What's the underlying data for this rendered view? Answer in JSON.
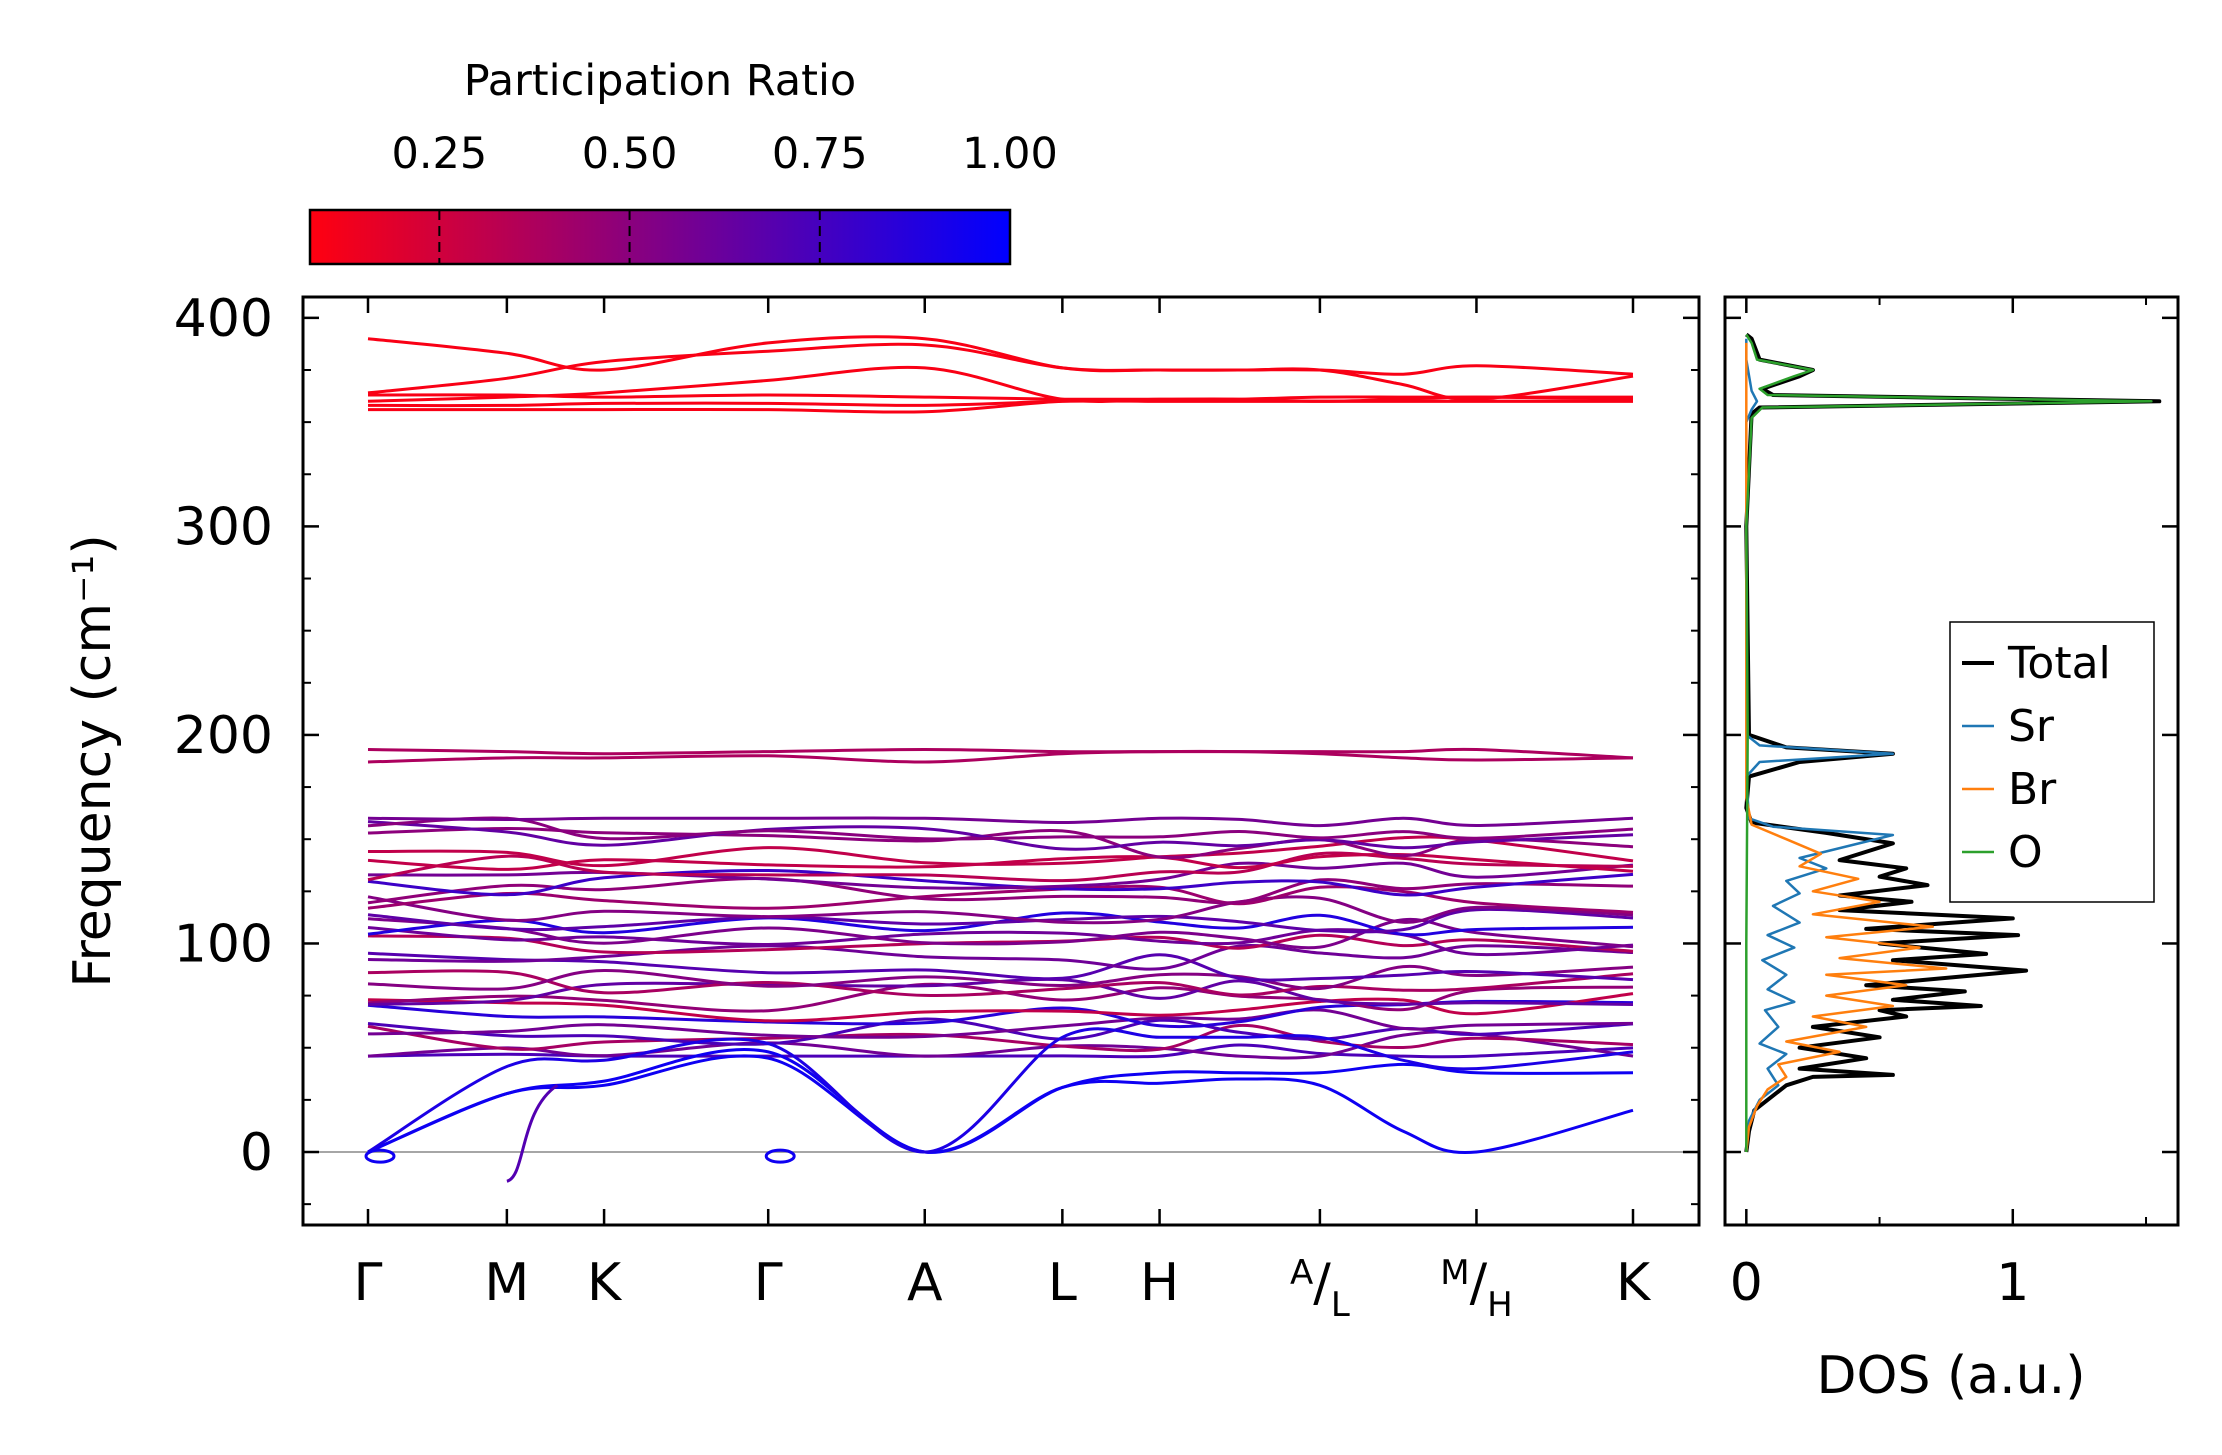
{
  "colorbar": {
    "title": "Participation Ratio",
    "range": [
      0.08,
      1.0
    ],
    "ticks": [
      0.25,
      0.5,
      0.75,
      1.0
    ],
    "tick_labels": [
      "0.25",
      "0.50",
      "0.75",
      "1.00"
    ],
    "color_low": "#ff0010",
    "color_high": "#0000ff"
  },
  "chart_data": [
    {
      "type": "line",
      "title": "",
      "xlabel": "",
      "ylabel": "Frequency (cm⁻¹)",
      "ylim": [
        -35,
        410
      ],
      "y_ticks": [
        0,
        100,
        200,
        300,
        400
      ],
      "y_tick_labels": [
        "0",
        "100",
        "200",
        "300",
        "400"
      ],
      "xlim": [
        0,
        10.4
      ],
      "kpoints": [
        {
          "pos": 0.0,
          "label": "Γ"
        },
        {
          "pos": 1.1,
          "label": "M"
        },
        {
          "pos": 1.87,
          "label": "K"
        },
        {
          "pos": 3.17,
          "label": "Γ"
        },
        {
          "pos": 4.41,
          "label": "A"
        },
        {
          "pos": 5.5,
          "label": "L"
        },
        {
          "pos": 6.27,
          "label": "H"
        },
        {
          "pos": 7.54,
          "label": "A",
          "sub": "L"
        },
        {
          "pos": 8.78,
          "label": "M",
          "sub": "H"
        },
        {
          "pos": 10.02,
          "label": "K"
        }
      ],
      "segments": [
        [
          0.0,
          1.1
        ],
        [
          1.1,
          3.17
        ],
        [
          3.17,
          7.54
        ],
        [
          7.54,
          8.78
        ],
        [
          8.78,
          10.02
        ]
      ],
      "bands": {
        "high": [
          {
            "y": [
              390,
              383,
              375,
              388,
              390,
              376,
              375,
              375,
              375,
              368,
              361,
              372
            ],
            "pr": 0.1
          },
          {
            "y": [
              364,
              371,
              379,
              384,
              387,
              376,
              375,
              375,
              375,
              373,
              377,
              373
            ],
            "pr": 0.1
          },
          {
            "y": [
              363,
              363,
              362,
              363,
              362,
              361,
              361,
              361,
              362,
              362,
              362,
              362
            ],
            "pr": 0.1
          },
          {
            "y": [
              360,
              362,
              364,
              370,
              376,
              361,
              361,
              361,
              360,
              361,
              362,
              361
            ],
            "pr": 0.1
          },
          {
            "y": [
              358,
              358,
              359,
              359,
              358,
              360,
              360,
              360,
              360,
              360,
              360,
              360
            ],
            "pr": 0.1
          },
          {
            "y": [
              356,
              356,
              356,
              356,
              355,
              360,
              360,
              360,
              360,
              360,
              360,
              360
            ],
            "pr": 0.1
          }
        ],
        "mid": [
          {
            "y": [
              193,
              192,
              191,
              192,
              193,
              192,
              192,
              192,
              192,
              192,
              193,
              189
            ],
            "pr": 0.38
          },
          {
            "y": [
              187,
              189,
              189,
              190,
              187,
              191,
              192,
              192,
              191,
              189,
              188,
              189
            ],
            "pr": 0.38
          }
        ],
        "optic": {
          "lines": 30,
          "y_min": 46,
          "y_max": 160
        },
        "acoustic": [
          {
            "y": [
              0,
              28,
              32,
              45,
              0,
              31,
              33,
              35,
              32,
              10,
              0,
              20
            ],
            "pr": 0.95
          },
          {
            "y": [
              0,
              28,
              34,
              48,
              0,
              31,
              38,
              38,
              38,
              42,
              38,
              38
            ],
            "pr": 0.95
          },
          {
            "y": [
              0,
              41,
              44,
              52,
              0,
              55,
              55,
              55,
              55,
              44,
              40,
              48
            ],
            "pr": 0.9
          }
        ]
      },
      "zero_line": true
    },
    {
      "type": "line",
      "title": "",
      "xlabel": "DOS (a.u.)",
      "ylabel": "",
      "xlim": [
        -0.08,
        1.62
      ],
      "ylim": [
        -35,
        410
      ],
      "x_ticks": [
        0,
        1
      ],
      "x_tick_labels": [
        "0",
        "1"
      ],
      "legend_position": "right",
      "series": [
        {
          "name": "Total",
          "color": "#000000",
          "points": [
            [
              0,
              0
            ],
            [
              0.01,
              10
            ],
            [
              0.03,
              20
            ],
            [
              0.1,
              27
            ],
            [
              0.15,
              32
            ],
            [
              0.25,
              36
            ],
            [
              0.55,
              37
            ],
            [
              0.2,
              40
            ],
            [
              0.45,
              45
            ],
            [
              0.2,
              50
            ],
            [
              0.5,
              55
            ],
            [
              0.25,
              60
            ],
            [
              0.6,
              65
            ],
            [
              0.5,
              68
            ],
            [
              0.88,
              70
            ],
            [
              0.55,
              73
            ],
            [
              0.82,
              77
            ],
            [
              0.45,
              80
            ],
            [
              1.05,
              87
            ],
            [
              0.55,
              92
            ],
            [
              0.9,
              95
            ],
            [
              0.5,
              100
            ],
            [
              1.02,
              104
            ],
            [
              0.45,
              107
            ],
            [
              1.0,
              112
            ],
            [
              0.35,
              116
            ],
            [
              0.62,
              120
            ],
            [
              0.35,
              123
            ],
            [
              0.68,
              128
            ],
            [
              0.5,
              132
            ],
            [
              0.6,
              136
            ],
            [
              0.35,
              140
            ],
            [
              0.55,
              148
            ],
            [
              0.3,
              153
            ],
            [
              0.02,
              158
            ],
            [
              0,
              165
            ],
            [
              0.01,
              180
            ],
            [
              0.2,
              187
            ],
            [
              0.55,
              191
            ],
            [
              0.15,
              194
            ],
            [
              0.01,
              200
            ],
            [
              0,
              300
            ],
            [
              0.02,
              354
            ],
            [
              0.05,
              357
            ],
            [
              1.55,
              360
            ],
            [
              0.1,
              363
            ],
            [
              0.06,
              366
            ],
            [
              0.2,
              372
            ],
            [
              0.25,
              375
            ],
            [
              0.05,
              380
            ],
            [
              0.02,
              390
            ],
            [
              0,
              392
            ]
          ]
        },
        {
          "name": "Sr",
          "color": "#1f77b4",
          "points": [
            [
              0,
              0
            ],
            [
              0.01,
              15
            ],
            [
              0.05,
              25
            ],
            [
              0.12,
              32
            ],
            [
              0.08,
              40
            ],
            [
              0.15,
              47
            ],
            [
              0.05,
              52
            ],
            [
              0.12,
              60
            ],
            [
              0.07,
              68
            ],
            [
              0.18,
              72
            ],
            [
              0.08,
              78
            ],
            [
              0.15,
              85
            ],
            [
              0.06,
              92
            ],
            [
              0.18,
              98
            ],
            [
              0.08,
              104
            ],
            [
              0.2,
              110
            ],
            [
              0.1,
              118
            ],
            [
              0.2,
              124
            ],
            [
              0.15,
              130
            ],
            [
              0.3,
              136
            ],
            [
              0.2,
              141
            ],
            [
              0.55,
              152
            ],
            [
              0.1,
              156
            ],
            [
              0.01,
              160
            ],
            [
              0,
              180
            ],
            [
              0.05,
              187
            ],
            [
              0.55,
              191
            ],
            [
              0.05,
              195
            ],
            [
              0,
              200
            ],
            [
              0,
              350
            ],
            [
              0.02,
              356
            ],
            [
              0.04,
              360
            ],
            [
              0.02,
              365
            ],
            [
              0,
              380
            ],
            [
              0,
              390
            ]
          ]
        },
        {
          "name": "Br",
          "color": "#ff7f0e",
          "points": [
            [
              0,
              0
            ],
            [
              0.01,
              12
            ],
            [
              0.04,
              22
            ],
            [
              0.08,
              30
            ],
            [
              0.15,
              36
            ],
            [
              0.12,
              42
            ],
            [
              0.35,
              48
            ],
            [
              0.15,
              53
            ],
            [
              0.45,
              60
            ],
            [
              0.25,
              65
            ],
            [
              0.55,
              70
            ],
            [
              0.3,
              75
            ],
            [
              0.6,
              80
            ],
            [
              0.3,
              85
            ],
            [
              0.75,
              88
            ],
            [
              0.35,
              93
            ],
            [
              0.65,
              98
            ],
            [
              0.3,
              103
            ],
            [
              0.7,
              108
            ],
            [
              0.25,
              114
            ],
            [
              0.5,
              120
            ],
            [
              0.25,
              125
            ],
            [
              0.42,
              131
            ],
            [
              0.2,
              137
            ],
            [
              0.28,
              143
            ],
            [
              0.15,
              150
            ],
            [
              0.02,
              157
            ],
            [
              0,
              170
            ],
            [
              0,
              388
            ]
          ]
        },
        {
          "name": "O",
          "color": "#2ca02c",
          "points": [
            [
              0,
              0
            ],
            [
              0,
              100
            ],
            [
              0.005,
              200
            ],
            [
              0,
              300
            ],
            [
              0.02,
              352
            ],
            [
              0.06,
              357
            ],
            [
              1.52,
              360
            ],
            [
              0.08,
              363
            ],
            [
              0.05,
              366
            ],
            [
              0.18,
              372
            ],
            [
              0.25,
              375
            ],
            [
              0.04,
              380
            ],
            [
              0.02,
              388
            ],
            [
              0,
              392
            ]
          ]
        }
      ]
    }
  ]
}
